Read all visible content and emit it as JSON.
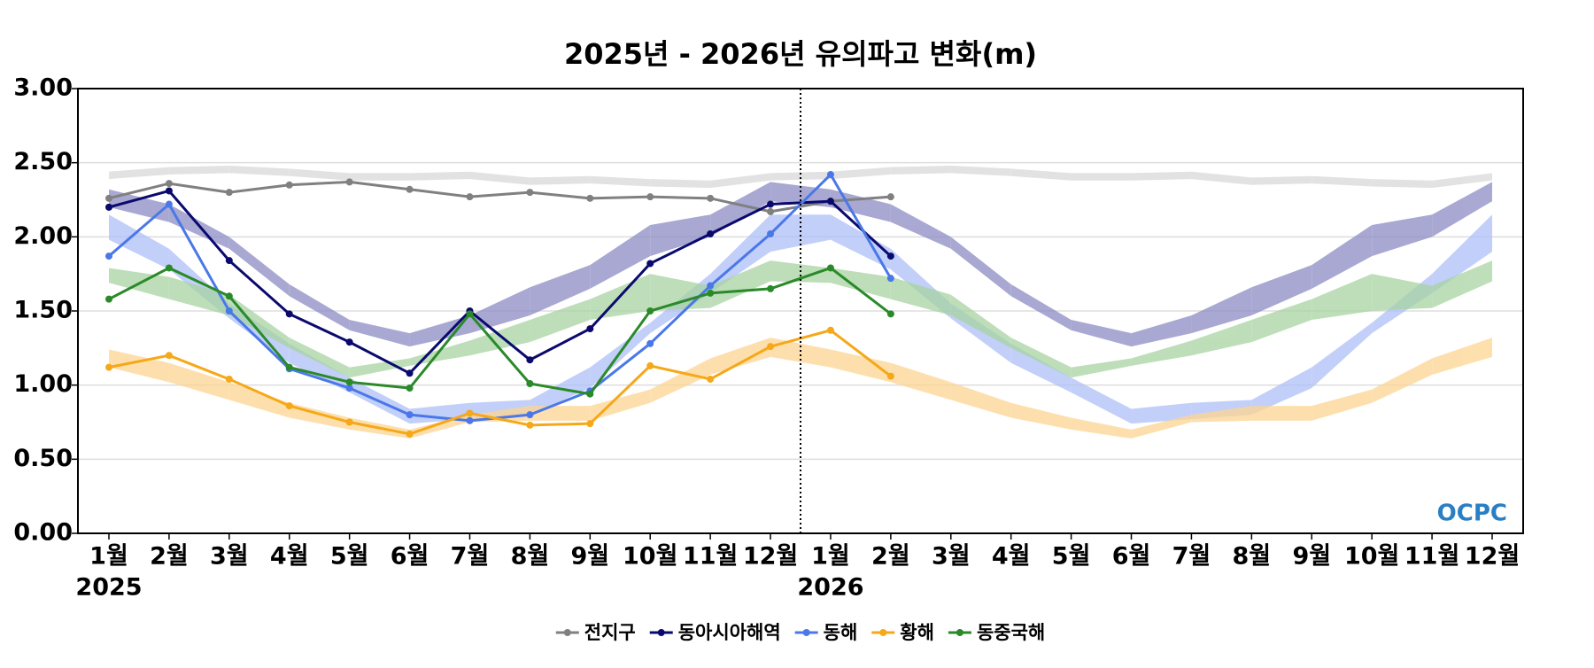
{
  "chart_data": {
    "type": "line",
    "title": "2025년 - 2026년 유의파고 변화(m)",
    "categories": [
      "1월",
      "2월",
      "3월",
      "4월",
      "5월",
      "6월",
      "7월",
      "8월",
      "9월",
      "10월",
      "11월",
      "12월",
      "1월",
      "2월",
      "3월",
      "4월",
      "5월",
      "6월",
      "7월",
      "8월",
      "9월",
      "10월",
      "11월",
      "12월"
    ],
    "year_labels": [
      "2025",
      "2026"
    ],
    "logo": "OCPC",
    "ylim": [
      0,
      3
    ],
    "yticks": [
      {
        "value": 0,
        "label": "0.00"
      },
      {
        "value": 0.5,
        "label": "0.50"
      },
      {
        "value": 1,
        "label": "1.00"
      },
      {
        "value": 1.5,
        "label": "1.50"
      },
      {
        "value": 2,
        "label": "2.00"
      },
      {
        "value": 2.5,
        "label": "2.50"
      },
      {
        "value": 3,
        "label": "3.00"
      }
    ],
    "grid": true,
    "legend": "bottom",
    "series": [
      {
        "name": "전지구",
        "color": "#808080",
        "band_color": "#d9d9d9",
        "values": [
          2.26,
          2.36,
          2.3,
          2.35,
          2.37,
          2.32,
          2.27,
          2.3,
          2.26,
          2.27,
          2.26,
          2.17,
          2.24,
          2.27,
          null,
          null,
          null,
          null,
          null,
          null,
          null,
          null,
          null,
          null
        ],
        "band_lower": [
          2.39,
          2.42,
          2.43,
          2.41,
          2.38,
          2.38,
          2.39,
          2.35,
          2.36,
          2.34,
          2.33,
          2.38,
          2.39,
          2.42,
          2.43,
          2.41,
          2.38,
          2.38,
          2.39,
          2.35,
          2.36,
          2.34,
          2.33,
          2.38
        ],
        "band_upper": [
          2.44,
          2.47,
          2.48,
          2.46,
          2.43,
          2.43,
          2.44,
          2.4,
          2.41,
          2.39,
          2.38,
          2.43,
          2.44,
          2.47,
          2.48,
          2.46,
          2.43,
          2.43,
          2.44,
          2.4,
          2.41,
          2.39,
          2.38,
          2.43
        ]
      },
      {
        "name": "동아시아해역",
        "color": "#0a0a6e",
        "band_color": "#8c8cc4",
        "values": [
          2.2,
          2.31,
          1.84,
          1.48,
          1.29,
          1.08,
          1.5,
          1.17,
          1.38,
          1.82,
          2.02,
          2.22,
          2.24,
          1.87,
          null,
          null,
          null,
          null,
          null,
          null,
          null,
          null,
          null,
          null
        ],
        "band_lower": [
          2.2,
          2.1,
          1.92,
          1.6,
          1.37,
          1.26,
          1.35,
          1.47,
          1.65,
          1.87,
          2.0,
          2.24,
          2.2,
          2.1,
          1.92,
          1.6,
          1.37,
          1.26,
          1.35,
          1.47,
          1.65,
          1.87,
          2.0,
          2.24
        ],
        "band_upper": [
          2.32,
          2.22,
          2.0,
          1.68,
          1.44,
          1.35,
          1.47,
          1.66,
          1.81,
          2.08,
          2.15,
          2.37,
          2.32,
          2.22,
          2.0,
          1.68,
          1.44,
          1.35,
          1.47,
          1.66,
          1.81,
          2.08,
          2.15,
          2.37
        ]
      },
      {
        "name": "동해",
        "color": "#4a78e8",
        "band_color": "#aebff8",
        "values": [
          1.87,
          2.22,
          1.5,
          1.11,
          0.98,
          0.8,
          0.76,
          0.8,
          0.96,
          1.28,
          1.67,
          2.02,
          2.42,
          1.72,
          null,
          null,
          null,
          null,
          null,
          null,
          null,
          null,
          null,
          null
        ],
        "band_lower": [
          1.98,
          1.78,
          1.45,
          1.15,
          0.95,
          0.74,
          0.77,
          0.8,
          0.98,
          1.35,
          1.62,
          1.9,
          1.98,
          1.78,
          1.45,
          1.15,
          0.95,
          0.74,
          0.77,
          0.8,
          0.98,
          1.35,
          1.62,
          1.9
        ],
        "band_upper": [
          2.15,
          1.92,
          1.55,
          1.28,
          1.05,
          0.84,
          0.88,
          0.9,
          1.12,
          1.42,
          1.75,
          2.15,
          2.15,
          1.92,
          1.55,
          1.28,
          1.05,
          0.84,
          0.88,
          0.9,
          1.12,
          1.42,
          1.75,
          2.15
        ]
      },
      {
        "name": "황해",
        "color": "#f5a818",
        "band_color": "#fdd592",
        "values": [
          1.12,
          1.2,
          1.04,
          0.86,
          0.75,
          0.67,
          0.81,
          0.73,
          0.74,
          1.13,
          1.04,
          1.26,
          1.37,
          1.06,
          null,
          null,
          null,
          null,
          null,
          null,
          null,
          null,
          null,
          null
        ],
        "band_lower": [
          1.12,
          1.02,
          0.9,
          0.78,
          0.7,
          0.64,
          0.75,
          0.76,
          0.76,
          0.88,
          1.07,
          1.19,
          1.12,
          1.02,
          0.9,
          0.78,
          0.7,
          0.64,
          0.75,
          0.76,
          0.76,
          0.88,
          1.07,
          1.19
        ],
        "band_upper": [
          1.24,
          1.15,
          1.02,
          0.88,
          0.78,
          0.7,
          0.8,
          0.86,
          0.86,
          0.97,
          1.18,
          1.32,
          1.24,
          1.15,
          1.02,
          0.88,
          0.78,
          0.7,
          0.8,
          0.86,
          0.86,
          0.97,
          1.18,
          1.32
        ]
      },
      {
        "name": "동중국해",
        "color": "#2a8a2a",
        "band_color": "#a8d4a2",
        "values": [
          1.58,
          1.79,
          1.6,
          1.12,
          1.02,
          0.98,
          1.48,
          1.01,
          0.94,
          1.5,
          1.62,
          1.65,
          1.79,
          1.48,
          null,
          null,
          null,
          null,
          null,
          null,
          null,
          null,
          null,
          null
        ],
        "band_lower": [
          1.69,
          1.58,
          1.47,
          1.25,
          1.05,
          1.13,
          1.2,
          1.29,
          1.44,
          1.5,
          1.52,
          1.7,
          1.69,
          1.58,
          1.47,
          1.25,
          1.05,
          1.13,
          1.2,
          1.29,
          1.44,
          1.5,
          1.52,
          1.7
        ],
        "band_upper": [
          1.79,
          1.73,
          1.61,
          1.32,
          1.12,
          1.18,
          1.3,
          1.44,
          1.58,
          1.75,
          1.67,
          1.84,
          1.79,
          1.73,
          1.61,
          1.32,
          1.12,
          1.18,
          1.3,
          1.44,
          1.58,
          1.75,
          1.67,
          1.84
        ]
      }
    ]
  }
}
